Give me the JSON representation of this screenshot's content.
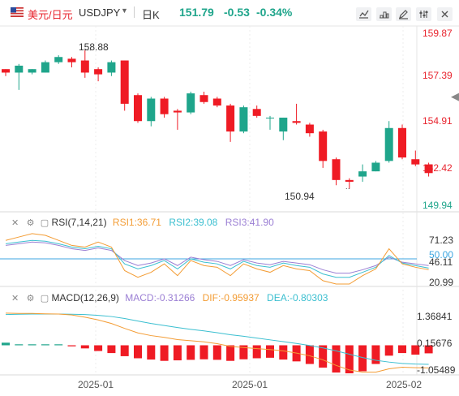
{
  "header": {
    "pair_cn": "美元/日元",
    "pair_en": "USDJPY",
    "timeframe": "日K",
    "price": "151.79",
    "change": "-0.53",
    "change_pct": "-0.34%",
    "toolbar_icons": [
      "chart-tool-icon",
      "chart-type-icon",
      "draw-icon",
      "settings-icon",
      "fullscreen-icon",
      "close-icon"
    ]
  },
  "main_panel": {
    "price_axis": [
      "159.87",
      "157.39",
      "154.91",
      "152.42",
      "149.94"
    ],
    "current_price_label": "151.79",
    "high_label": "158.88",
    "low_label": "150.94",
    "candles": [
      [
        157.8,
        157.6,
        157.8,
        157.4
      ],
      [
        157.6,
        158.0,
        158.1,
        156.6
      ],
      [
        157.6,
        157.8,
        157.8,
        157.5
      ],
      [
        157.6,
        158.2,
        158.3,
        157.6
      ],
      [
        158.2,
        158.5,
        158.6,
        158.1
      ],
      [
        158.4,
        158.2,
        158.5,
        157.9
      ],
      [
        158.3,
        157.6,
        158.9,
        157.3
      ],
      [
        157.8,
        157.5,
        157.9,
        157.1
      ],
      [
        157.6,
        158.2,
        158.3,
        157.4
      ],
      [
        158.3,
        155.8,
        158.3,
        155.4
      ],
      [
        156.3,
        154.8,
        156.4,
        154.7
      ],
      [
        154.8,
        156.1,
        156.2,
        154.5
      ],
      [
        156.1,
        155.2,
        156.2,
        155.0
      ],
      [
        155.4,
        155.3,
        155.5,
        154.3
      ],
      [
        155.3,
        156.4,
        156.5,
        155.2
      ],
      [
        156.3,
        155.9,
        156.5,
        155.8
      ],
      [
        156.1,
        155.7,
        156.2,
        155.6
      ],
      [
        155.7,
        154.2,
        155.8,
        153.6
      ],
      [
        154.2,
        155.6,
        155.7,
        154.1
      ],
      [
        155.5,
        155.1,
        155.7,
        155.0
      ],
      [
        155.0,
        155.0,
        155.1,
        154.3
      ],
      [
        154.2,
        155.0,
        155.0,
        153.7
      ],
      [
        154.8,
        154.7,
        155.8,
        154.6
      ],
      [
        154.6,
        154.1,
        154.7,
        153.9
      ],
      [
        154.2,
        152.5,
        154.3,
        152.1
      ],
      [
        152.6,
        151.4,
        152.7,
        151.1
      ],
      [
        151.4,
        151.3,
        151.5,
        150.9
      ],
      [
        151.6,
        151.9,
        152.3,
        151.3
      ],
      [
        151.9,
        152.4,
        152.5,
        151.9
      ],
      [
        152.5,
        154.4,
        154.8,
        152.4
      ],
      [
        154.4,
        152.7,
        154.6,
        152.6
      ],
      [
        152.6,
        152.3,
        153.1,
        152.2
      ],
      [
        152.3,
        151.8,
        152.4,
        151.6
      ]
    ]
  },
  "rsi_panel": {
    "title": "RSI(7,14,21)",
    "rsi1": "RSI1:36.71",
    "rsi2": "RSI2:39.08",
    "rsi3": "RSI3:41.90",
    "axis": [
      "71.23",
      "50.00",
      "46.11",
      "20.99"
    ],
    "colors": {
      "rsi1": "#f39c34",
      "rsi2": "#3bbfd0",
      "rsi3": "#9b7fd4",
      "ref": "#3da6e0"
    },
    "rsi1_values": [
      72,
      76,
      80,
      78,
      72,
      66,
      64,
      70,
      64,
      36,
      28,
      34,
      44,
      30,
      48,
      42,
      40,
      30,
      44,
      38,
      34,
      42,
      38,
      36,
      24,
      20,
      20,
      30,
      38,
      62,
      44,
      40,
      37
    ],
    "rsi2_values": [
      68,
      70,
      72,
      71,
      68,
      64,
      62,
      65,
      62,
      44,
      38,
      42,
      48,
      38,
      50,
      46,
      44,
      38,
      47,
      42,
      40,
      45,
      42,
      40,
      32,
      28,
      28,
      34,
      40,
      54,
      45,
      42,
      39
    ],
    "rsi3_values": [
      66,
      68,
      70,
      69,
      66,
      62,
      60,
      63,
      60,
      48,
      42,
      45,
      50,
      42,
      52,
      49,
      47,
      42,
      49,
      45,
      43,
      47,
      45,
      43,
      37,
      33,
      33,
      37,
      42,
      52,
      46,
      44,
      42
    ]
  },
  "macd_panel": {
    "title": "MACD(12,26,9)",
    "macd": "MACD:-0.31266",
    "dif": "DIF:-0.95937",
    "dea": "DEA:-0.80303",
    "axis": [
      "1.36841",
      "0.15676",
      "-1.05489"
    ],
    "colors": {
      "dif": "#f39c34",
      "dea": "#3bbfd0",
      "hist_neg": "#ef1b24",
      "hist_pos": "#1fa58b"
    },
    "hist_values": [
      0.1,
      0.02,
      0.02,
      0.02,
      0.02,
      -0.04,
      -0.12,
      -0.22,
      -0.3,
      -0.42,
      -0.5,
      -0.55,
      -0.6,
      -0.58,
      -0.56,
      -0.54,
      -0.56,
      -0.6,
      -0.54,
      -0.5,
      -0.48,
      -0.55,
      -0.62,
      -0.72,
      -0.86,
      -1.05,
      -1.08,
      -1.0,
      -0.72,
      -0.4,
      -0.3,
      -0.36,
      -0.31
    ],
    "dif_values": [
      1.48,
      1.47,
      1.47,
      1.45,
      1.44,
      1.4,
      1.3,
      1.18,
      1.02,
      0.8,
      0.6,
      0.48,
      0.4,
      0.3,
      0.25,
      0.2,
      0.12,
      0.0,
      -0.05,
      -0.1,
      -0.14,
      -0.2,
      -0.3,
      -0.42,
      -0.6,
      -0.85,
      -1.05,
      -1.15,
      -1.15,
      -1.0,
      -0.93,
      -0.95,
      -0.96
    ],
    "dea_values": [
      1.42,
      1.43,
      1.44,
      1.44,
      1.44,
      1.43,
      1.42,
      1.38,
      1.33,
      1.24,
      1.13,
      1.02,
      0.93,
      0.84,
      0.76,
      0.69,
      0.61,
      0.52,
      0.45,
      0.37,
      0.29,
      0.21,
      0.13,
      0.04,
      -0.07,
      -0.2,
      -0.35,
      -0.5,
      -0.62,
      -0.7,
      -0.76,
      -0.79,
      -0.8
    ]
  },
  "x_axis": [
    "2025-01",
    "2025-01",
    "2025-02"
  ]
}
